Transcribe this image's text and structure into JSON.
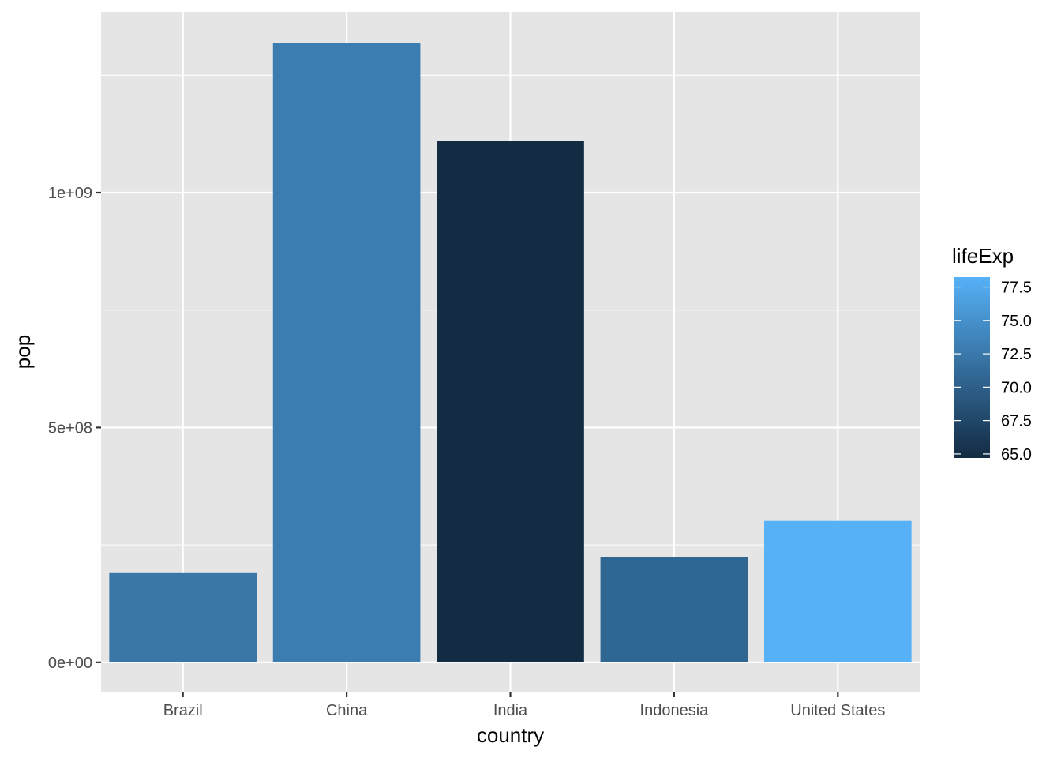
{
  "chart_data": {
    "type": "bar",
    "xlabel": "country",
    "ylabel": "pop",
    "categories": [
      "Brazil",
      "China",
      "India",
      "Indonesia",
      "United States"
    ],
    "values": [
      190010647,
      1318683096,
      1110396331,
      223547000,
      301139947
    ],
    "fill_values": [
      72.39,
      72.961,
      64.698,
      70.65,
      78.242
    ],
    "ylim": [
      -62500000,
      1385000000
    ],
    "y_ticks": [
      {
        "value": 0,
        "label": "0e+00"
      },
      {
        "value": 500000000,
        "label": "5e+08"
      },
      {
        "value": 1000000000,
        "label": "1e+09"
      }
    ],
    "y_minor_ticks": [
      250000000,
      750000000,
      1250000000
    ],
    "grid": true,
    "panel_background": "#e5e5e5",
    "grid_color": "#ffffff",
    "legend": {
      "title": "lifeExp",
      "position": "right",
      "range": [
        64.698,
        78.242
      ],
      "color_low": "#132b43",
      "color_high": "#56b1f7",
      "ticks": [
        {
          "value": 65.0,
          "label": "65.0"
        },
        {
          "value": 67.5,
          "label": "67.5"
        },
        {
          "value": 70.0,
          "label": "70.0"
        },
        {
          "value": 72.5,
          "label": "72.5"
        },
        {
          "value": 75.0,
          "label": "75.0"
        },
        {
          "value": 77.5,
          "label": "77.5"
        }
      ]
    }
  }
}
